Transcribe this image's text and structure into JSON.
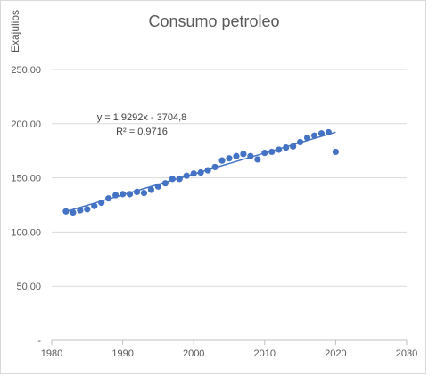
{
  "chart_data": {
    "type": "scatter",
    "title": "Consumo petroleo",
    "ylabel": "Exajulios",
    "xlabel": "",
    "xlim": [
      1980,
      2030
    ],
    "ylim": [
      0,
      250
    ],
    "x_ticks": [
      1980,
      1990,
      2000,
      2010,
      2020,
      2030
    ],
    "y_ticks": [
      0,
      50,
      100,
      150,
      200,
      250
    ],
    "y_tick_labels": [
      "-",
      "50,00",
      "100,00",
      "150,00",
      "200,00",
      "250,00"
    ],
    "grid": "horizontal",
    "marker_color": "#4472C4",
    "trendline": {
      "type": "linear",
      "slope": 1.9292,
      "intercept": -3704.8,
      "x_range": [
        1982,
        2020
      ],
      "color": "#4472C4",
      "equation_label": "y = 1,9292x - 3704,8",
      "r2_label": "R² = 0,9716"
    },
    "points": {
      "x": [
        1982,
        1983,
        1984,
        1985,
        1986,
        1987,
        1988,
        1989,
        1990,
        1991,
        1992,
        1993,
        1994,
        1995,
        1996,
        1997,
        1998,
        1999,
        2000,
        2001,
        2002,
        2003,
        2004,
        2005,
        2006,
        2007,
        2008,
        2009,
        2010,
        2011,
        2012,
        2013,
        2014,
        2015,
        2016,
        2017,
        2018,
        2019,
        2020
      ],
      "y": [
        119,
        118,
        120,
        121,
        124,
        127,
        131,
        134,
        135,
        135,
        137,
        136,
        139,
        142,
        145,
        149,
        149,
        152,
        154,
        155,
        157,
        160,
        166,
        168,
        170,
        172,
        170,
        167,
        173,
        174,
        176,
        178,
        179,
        183,
        187,
        189,
        191,
        192,
        174
      ]
    }
  }
}
